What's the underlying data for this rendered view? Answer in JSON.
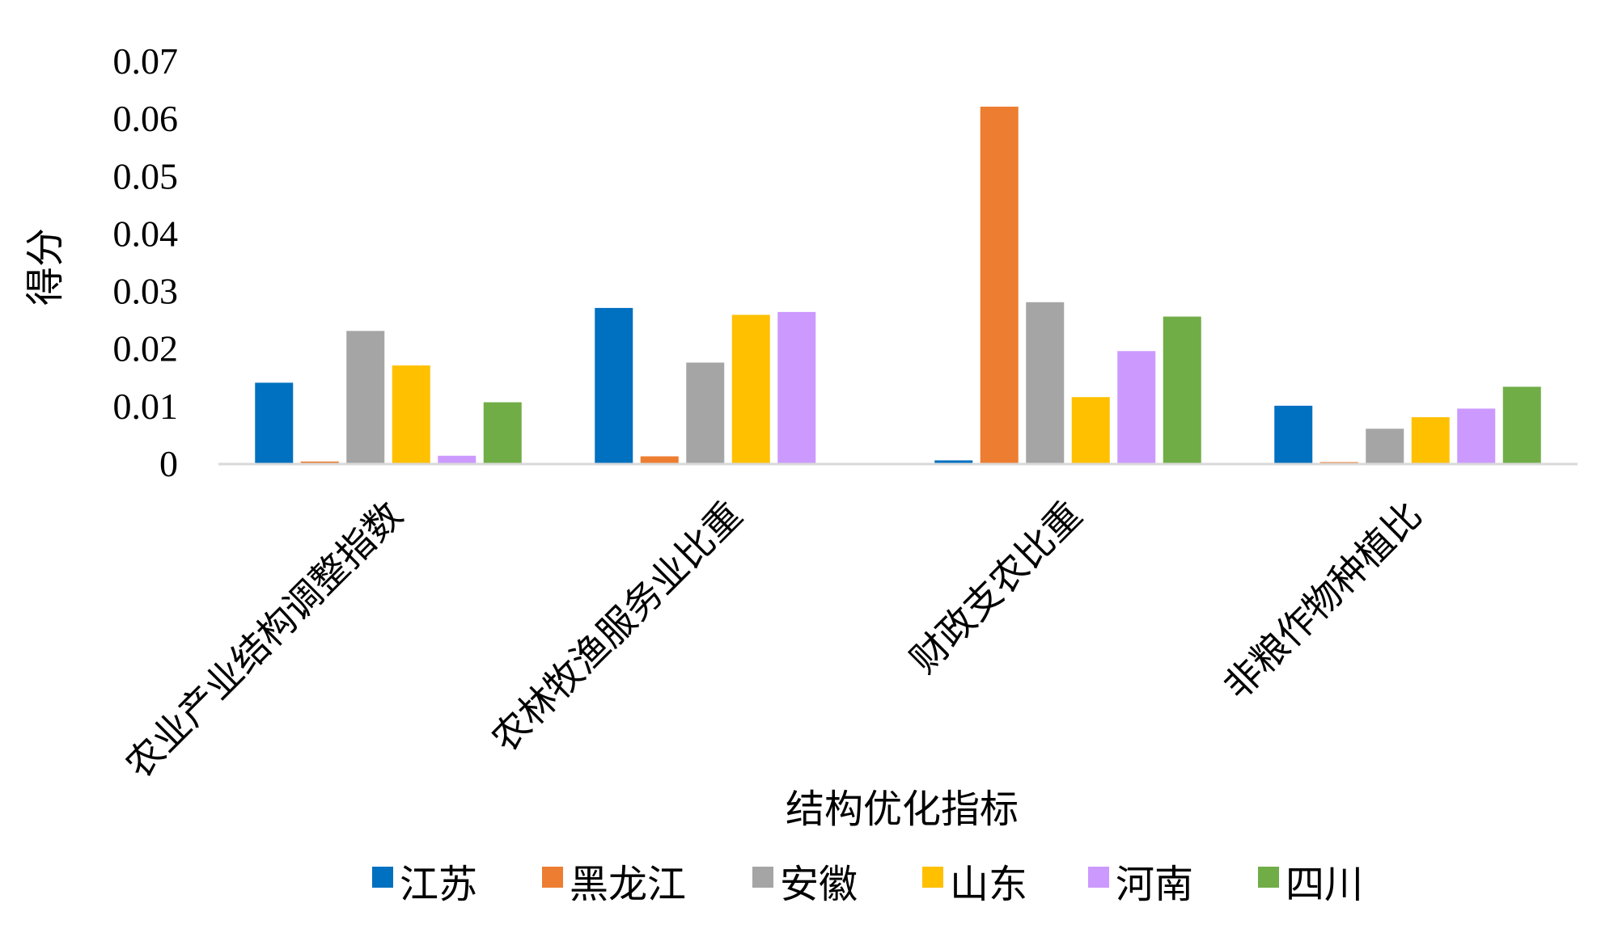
{
  "chart_data": {
    "type": "bar",
    "ylabel": "得分",
    "xlabel": "结构优化指标",
    "ylim": [
      0,
      0.07
    ],
    "yticks": [
      "0",
      "0.01",
      "0.02",
      "0.03",
      "0.04",
      "0.05",
      "0.06",
      "0.07"
    ],
    "grid": false,
    "legend_position": "bottom",
    "categories": [
      "农业产业结构调整指数",
      "农林牧渔服务业比重",
      "财政支农比重",
      "非粮作物种植比"
    ],
    "series": [
      {
        "name": "江苏",
        "color": "#0070C0",
        "values": [
          0.014,
          0.027,
          0.0005,
          0.01
        ]
      },
      {
        "name": "黑龙江",
        "color": "#ED7D31",
        "values": [
          0.0003,
          0.0012,
          0.062,
          0.0002
        ]
      },
      {
        "name": "安徽",
        "color": "#A5A5A5",
        "values": [
          0.023,
          0.0175,
          0.028,
          0.006
        ]
      },
      {
        "name": "山东",
        "color": "#FFC000",
        "values": [
          0.017,
          0.0258,
          0.0115,
          0.008
        ]
      },
      {
        "name": "河南",
        "color": "#CC99FF",
        "values": [
          0.0013,
          0.0263,
          0.0195,
          0.0095
        ]
      },
      {
        "name": "四川",
        "color": "#70AD47",
        "values": [
          0.0106,
          0.0,
          0.0255,
          0.0133
        ]
      }
    ]
  }
}
